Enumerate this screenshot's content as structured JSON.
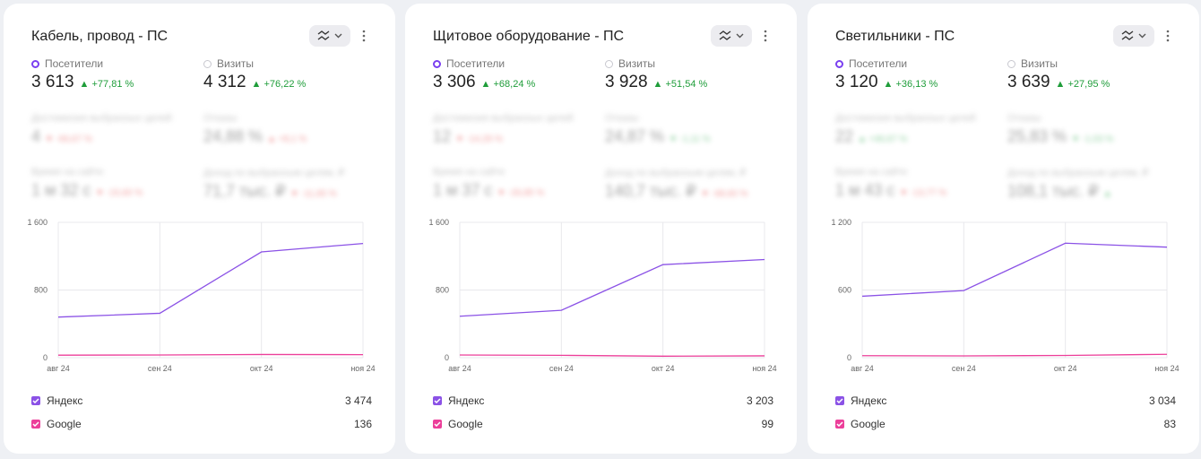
{
  "colors": {
    "yandex": "#8b52e6",
    "google": "#ec3f9a",
    "grid": "#e8e8ec",
    "positive": "#1f9d3a",
    "radio_active": "#7a3ff0"
  },
  "icons": {
    "chart_toggle": "line-chart-icon",
    "more": "more-vertical-icon"
  },
  "cards": [
    {
      "title": "Кабель, провод - ПС",
      "metrics": [
        {
          "label": "Посетители",
          "value": "3 613",
          "delta": "▲ +77,81 %",
          "active": true
        },
        {
          "label": "Визиты",
          "value": "4 312",
          "delta": "▲ +76,22 %",
          "active": false
        }
      ],
      "blurred_metrics": [
        {
          "label": "Достижения выбранных целей",
          "value": "4",
          "delta": "▼ -66,67 %",
          "tone": "red"
        },
        {
          "label": "Отказы",
          "value": "24,88 %",
          "delta": "▲ +8,1 %",
          "tone": "red"
        },
        {
          "label": "Время на сайте",
          "value": "1 м 32 с",
          "delta": "▼ -15,60 %",
          "tone": "red"
        },
        {
          "label": "Доход по выбранным целям, ₽",
          "value": "71,7 тыс. ₽",
          "delta": "▼ -11,65 %",
          "tone": "red"
        }
      ],
      "chart_data": {
        "type": "line",
        "categories": [
          "авг 24",
          "сен 24",
          "окт 24",
          "ноя 24"
        ],
        "y_ticks": [
          "0",
          "800",
          "1 600"
        ],
        "ylim": [
          0,
          1600
        ],
        "series": [
          {
            "name": "Яндекс",
            "values": [
              480,
              525,
              1250,
              1350
            ]
          },
          {
            "name": "Google",
            "values": [
              30,
              32,
              38,
              36
            ]
          }
        ]
      },
      "legend": [
        {
          "name": "Яндекс",
          "value": "3 474"
        },
        {
          "name": "Google",
          "value": "136"
        }
      ]
    },
    {
      "title": "Щитовое оборудование - ПС",
      "metrics": [
        {
          "label": "Посетители",
          "value": "3 306",
          "delta": "▲ +68,24 %",
          "active": true
        },
        {
          "label": "Визиты",
          "value": "3 928",
          "delta": "▲ +51,54 %",
          "active": false
        }
      ],
      "blurred_metrics": [
        {
          "label": "Достижения выбранных целей",
          "value": "12",
          "delta": "▼ -14,29 %",
          "tone": "red"
        },
        {
          "label": "Отказы",
          "value": "24,87 %",
          "delta": "▼ -1,11 %",
          "tone": "green"
        },
        {
          "label": "Время на сайте",
          "value": "1 м 37 с",
          "delta": "▼ -26,85 %",
          "tone": "red"
        },
        {
          "label": "Доход по выбранным целям, ₽",
          "value": "140,7 тыс. ₽",
          "delta": "▼ -68,60 %",
          "tone": "red"
        }
      ],
      "chart_data": {
        "type": "line",
        "categories": [
          "авг 24",
          "сен 24",
          "окт 24",
          "ноя 24"
        ],
        "y_ticks": [
          "0",
          "800",
          "1 600"
        ],
        "ylim": [
          0,
          1600
        ],
        "series": [
          {
            "name": "Яндекс",
            "values": [
              490,
              560,
              1100,
              1160
            ]
          },
          {
            "name": "Google",
            "values": [
              32,
              28,
              18,
              22
            ]
          }
        ]
      },
      "legend": [
        {
          "name": "Яндекс",
          "value": "3 203"
        },
        {
          "name": "Google",
          "value": "99"
        }
      ]
    },
    {
      "title": "Светильники - ПС",
      "metrics": [
        {
          "label": "Посетители",
          "value": "3 120",
          "delta": "▲ +36,13 %",
          "active": true
        },
        {
          "label": "Визиты",
          "value": "3 639",
          "delta": "▲ +27,95 %",
          "active": false
        }
      ],
      "blurred_metrics": [
        {
          "label": "Достижения выбранных целей",
          "value": "22",
          "delta": "▲ +46,67 %",
          "tone": "green"
        },
        {
          "label": "Отказы",
          "value": "25,83 %",
          "delta": "▼ -1,03 %",
          "tone": "green"
        },
        {
          "label": "Время на сайте",
          "value": "1 м 43 с",
          "delta": "▼ -13,77 %",
          "tone": "red"
        },
        {
          "label": "Доход по выбранным целям, ₽",
          "value": "108,1 тыс. ₽",
          "delta": "▲",
          "tone": "green"
        }
      ],
      "chart_data": {
        "type": "line",
        "categories": [
          "авг 24",
          "сен 24",
          "окт 24",
          "ноя 24"
        ],
        "y_ticks": [
          "0",
          "600",
          "1 200"
        ],
        "ylim": [
          0,
          1200
        ],
        "series": [
          {
            "name": "Яндекс",
            "values": [
              545,
              595,
              1015,
              980
            ]
          },
          {
            "name": "Google",
            "values": [
              18,
              16,
              20,
              30
            ]
          }
        ]
      },
      "legend": [
        {
          "name": "Яндекс",
          "value": "3 034"
        },
        {
          "name": "Google",
          "value": "83"
        }
      ]
    }
  ]
}
